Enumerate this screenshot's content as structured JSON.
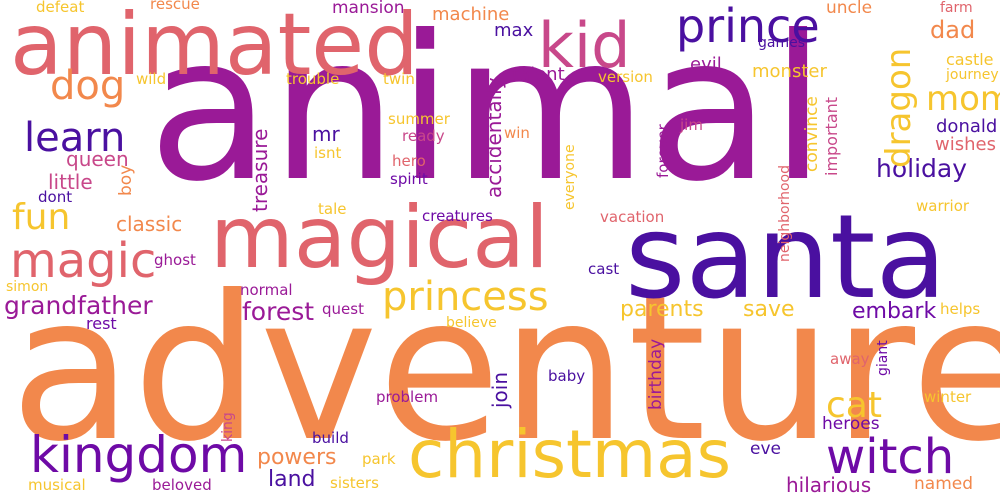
{
  "palette": {
    "pink": "#e0646c",
    "orange": "#f2884c",
    "gold": "#f6c52e",
    "magenta": "#9a1a97",
    "purple": "#6e0aa6",
    "indigo": "#4a10a0",
    "rose": "#c8488a"
  },
  "words": {
    "animal": "animal",
    "adventure": "adventure",
    "santa": "santa",
    "animated": "animated",
    "magical": "magical",
    "christmas": "christmas",
    "kid": "kid",
    "prince": "prince",
    "princess": "princess",
    "magic": "magic",
    "witch": "witch",
    "kingdom": "kingdom",
    "dog": "dog",
    "learn": "learn",
    "dragon": "dragon",
    "mom": "mom",
    "fun": "fun",
    "dad": "dad",
    "cat": "cat",
    "grandfather": "grandfather",
    "forest": "forest",
    "holiday": "holiday",
    "embark": "embark",
    "save": "save",
    "powers": "powers",
    "parents": "parents",
    "hilarious": "hilarious",
    "land": "land",
    "queen": "queen",
    "little": "little",
    "classic": "classic",
    "treasure": "treasure",
    "accidentally": "accidentally",
    "convince": "convince",
    "wishes": "wishes",
    "donald": "donald",
    "neighborhood": "neighborhood",
    "important": "important",
    "monster": "monster",
    "evil": "evil",
    "talent": "talent",
    "max": "max",
    "machine": "machine",
    "mansion": "mansion",
    "uncle": "uncle",
    "farm": "farm",
    "castle": "castle",
    "journey": "journey",
    "games": "games",
    "version": "version",
    "trouble": "trouble",
    "twin": "twin",
    "wild": "wild",
    "defeat": "defeat",
    "rescue": "rescue",
    "summer": "summer",
    "ready": "ready",
    "mr": "mr",
    "isnt": "isnt",
    "hero": "hero",
    "spirit": "spirit",
    "win": "win",
    "jim": "jim",
    "everyone": "everyone",
    "forever": "forever",
    "boy": "boy",
    "dont": "dont",
    "tale": "tale",
    "creatures": "creatures",
    "vacation": "vacation",
    "warrior": "warrior",
    "ghost": "ghost",
    "simon": "simon",
    "rest": "rest",
    "normal": "normal",
    "quest": "quest",
    "believe": "believe",
    "cast": "cast",
    "helps": "helps",
    "join": "join",
    "birthday": "birthday",
    "baby": "baby",
    "away": "away",
    "giant": "giant",
    "problem": "problem",
    "winter": "winter",
    "king": "king",
    "build": "build",
    "heroes": "heroes",
    "eve": "eve",
    "park": "park",
    "musical": "musical",
    "beloved": "beloved",
    "sisters": "sisters",
    "named": "named"
  }
}
